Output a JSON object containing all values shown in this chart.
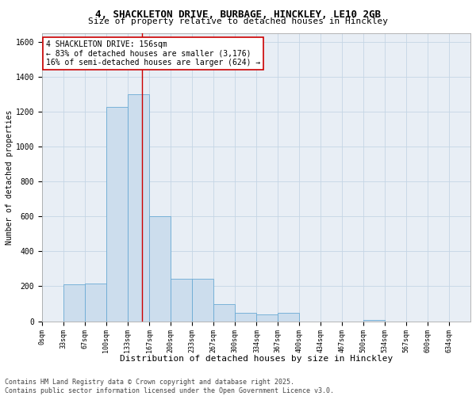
{
  "title_line1": "4, SHACKLETON DRIVE, BURBAGE, HINCKLEY, LE10 2GB",
  "title_line2": "Size of property relative to detached houses in Hinckley",
  "xlabel": "Distribution of detached houses by size in Hinckley",
  "ylabel": "Number of detached properties",
  "bar_color": "#ccdded",
  "bar_edge_color": "#6aaad4",
  "grid_color": "#c5d5e5",
  "bg_color": "#e8eef5",
  "vline_x": 156,
  "vline_color": "#cc0000",
  "annotation_box_color": "#cc0000",
  "annotation_line1": "4 SHACKLETON DRIVE: 156sqm",
  "annotation_line2": "← 83% of detached houses are smaller (3,176)",
  "annotation_line3": "16% of semi-detached houses are larger (624) →",
  "bin_edges": [
    0,
    33,
    67,
    100,
    133,
    167,
    200,
    233,
    267,
    300,
    334,
    367,
    400,
    434,
    467,
    500,
    534,
    567,
    600,
    634,
    667
  ],
  "bar_heights": [
    0,
    210,
    215,
    1230,
    1300,
    600,
    245,
    245,
    100,
    50,
    40,
    50,
    0,
    0,
    0,
    5,
    0,
    0,
    0,
    0
  ],
  "ylim": [
    0,
    1650
  ],
  "yticks": [
    0,
    200,
    400,
    600,
    800,
    1000,
    1200,
    1400,
    1600
  ],
  "xlim": [
    0,
    667
  ],
  "footnote_line1": "Contains HM Land Registry data © Crown copyright and database right 2025.",
  "footnote_line2": "Contains public sector information licensed under the Open Government Licence v3.0.",
  "title1_fontsize": 9,
  "title2_fontsize": 8,
  "tick_fontsize": 6,
  "axis_label_fontsize": 8,
  "annotation_fontsize": 7,
  "footnote_fontsize": 6
}
